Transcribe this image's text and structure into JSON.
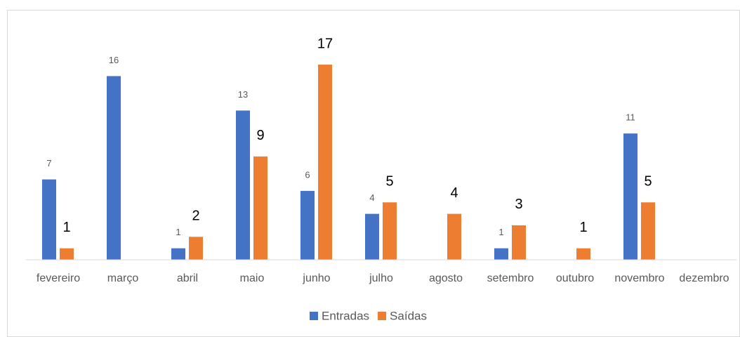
{
  "chart_data": {
    "type": "bar",
    "categories": [
      "fevereiro",
      "março",
      "abril",
      "maio",
      "junho",
      "julho",
      "agosto",
      "setembro",
      "outubro",
      "novembro",
      "dezembro"
    ],
    "series": [
      {
        "name": "Entradas",
        "color": "#4472c4",
        "values": [
          7,
          16,
          1,
          13,
          6,
          4,
          null,
          1,
          null,
          11,
          null
        ]
      },
      {
        "name": "Saídas",
        "color": "#ed7d31",
        "values": [
          1,
          null,
          2,
          9,
          17,
          5,
          4,
          3,
          1,
          5,
          null
        ]
      }
    ],
    "ylim": [
      0,
      20
    ],
    "legend": "bottom"
  }
}
